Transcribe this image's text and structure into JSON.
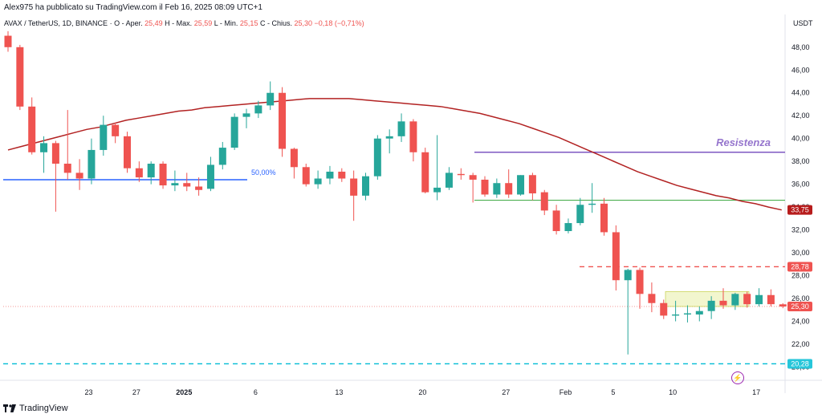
{
  "header": {
    "published": "Alex975 ha pubblicato su TradingView.com il Feb 16, 2025 08:09 UTC+1"
  },
  "symbol": {
    "title": "AVAX / TetherUS, 1D, BINANCE",
    "open_label": "O - Aper.",
    "open": "25,49",
    "high_label": "H - Max.",
    "high": "25,59",
    "low_label": "L - Min.",
    "low": "25,15",
    "close_label": "C - Chius.",
    "close": "25,30",
    "change": "−0,18 (−0,71%)"
  },
  "currency": "USDT",
  "footer": {
    "brand": "TradingView"
  },
  "chart_data": {
    "type": "candlestick",
    "y_range": [
      19.4,
      49.6
    ],
    "y_ticks": [
      "48,00",
      "46,00",
      "44,00",
      "42,00",
      "40,00",
      "38,00",
      "36,00",
      "34,00",
      "32,00",
      "30,00",
      "28,00",
      "26,00",
      "24,00",
      "22,00",
      "20,00"
    ],
    "x_ticks": [
      "23",
      "27",
      "2025",
      "6",
      "13",
      "20",
      "27",
      "Feb",
      "5",
      "10",
      "17"
    ],
    "candles": [
      {
        "o": 49.0,
        "h": 49.4,
        "l": 47.6,
        "c": 48.0
      },
      {
        "o": 48.0,
        "h": 48.2,
        "l": 42.5,
        "c": 42.8
      },
      {
        "o": 42.8,
        "h": 43.6,
        "l": 38.6,
        "c": 38.8
      },
      {
        "o": 38.8,
        "h": 40.2,
        "l": 37.0,
        "c": 39.6
      },
      {
        "o": 39.6,
        "h": 39.8,
        "l": 33.6,
        "c": 37.8
      },
      {
        "o": 37.8,
        "h": 42.5,
        "l": 36.4,
        "c": 37.0
      },
      {
        "o": 37.0,
        "h": 38.2,
        "l": 35.5,
        "c": 36.5
      },
      {
        "o": 36.5,
        "h": 40.0,
        "l": 36.0,
        "c": 39.0
      },
      {
        "o": 39.0,
        "h": 42.0,
        "l": 38.5,
        "c": 41.2
      },
      {
        "o": 41.2,
        "h": 41.4,
        "l": 39.6,
        "c": 40.2
      },
      {
        "o": 40.2,
        "h": 40.6,
        "l": 37.0,
        "c": 37.4
      },
      {
        "o": 37.4,
        "h": 38.0,
        "l": 36.2,
        "c": 36.6
      },
      {
        "o": 36.6,
        "h": 38.0,
        "l": 36.0,
        "c": 37.8
      },
      {
        "o": 37.8,
        "h": 38.0,
        "l": 35.6,
        "c": 35.9
      },
      {
        "o": 35.9,
        "h": 37.2,
        "l": 35.4,
        "c": 36.1
      },
      {
        "o": 36.1,
        "h": 37.0,
        "l": 35.4,
        "c": 35.8
      },
      {
        "o": 35.8,
        "h": 36.6,
        "l": 35.0,
        "c": 35.5
      },
      {
        "o": 35.6,
        "h": 38.4,
        "l": 35.4,
        "c": 37.7
      },
      {
        "o": 37.7,
        "h": 39.7,
        "l": 37.3,
        "c": 39.2
      },
      {
        "o": 39.2,
        "h": 42.2,
        "l": 39.0,
        "c": 41.9
      },
      {
        "o": 41.9,
        "h": 42.6,
        "l": 40.9,
        "c": 42.2
      },
      {
        "o": 42.2,
        "h": 43.3,
        "l": 41.8,
        "c": 42.9
      },
      {
        "o": 42.9,
        "h": 45.0,
        "l": 42.5,
        "c": 44.0
      },
      {
        "o": 44.0,
        "h": 44.5,
        "l": 38.4,
        "c": 39.1
      },
      {
        "o": 39.1,
        "h": 39.2,
        "l": 36.5,
        "c": 37.5
      },
      {
        "o": 37.5,
        "h": 37.8,
        "l": 35.8,
        "c": 36.0
      },
      {
        "o": 36.0,
        "h": 37.2,
        "l": 35.6,
        "c": 36.5
      },
      {
        "o": 36.5,
        "h": 37.6,
        "l": 36.0,
        "c": 37.1
      },
      {
        "o": 37.1,
        "h": 37.4,
        "l": 36.2,
        "c": 36.5
      },
      {
        "o": 36.5,
        "h": 37.2,
        "l": 32.8,
        "c": 35.0
      },
      {
        "o": 35.0,
        "h": 37.0,
        "l": 34.6,
        "c": 36.7
      },
      {
        "o": 36.7,
        "h": 40.3,
        "l": 36.4,
        "c": 40.0
      },
      {
        "o": 40.0,
        "h": 40.8,
        "l": 38.7,
        "c": 40.2
      },
      {
        "o": 40.2,
        "h": 42.2,
        "l": 39.7,
        "c": 41.5
      },
      {
        "o": 41.5,
        "h": 41.7,
        "l": 38.0,
        "c": 38.8
      },
      {
        "o": 38.8,
        "h": 39.2,
        "l": 35.2,
        "c": 35.3
      },
      {
        "o": 35.3,
        "h": 40.3,
        "l": 34.6,
        "c": 35.7
      },
      {
        "o": 35.7,
        "h": 37.5,
        "l": 35.5,
        "c": 37.0
      },
      {
        "o": 36.9,
        "h": 37.4,
        "l": 36.4,
        "c": 36.8
      },
      {
        "o": 36.8,
        "h": 37.0,
        "l": 34.4,
        "c": 36.4
      },
      {
        "o": 36.4,
        "h": 36.7,
        "l": 34.9,
        "c": 35.1
      },
      {
        "o": 35.1,
        "h": 36.5,
        "l": 34.8,
        "c": 36.1
      },
      {
        "o": 36.1,
        "h": 37.3,
        "l": 34.8,
        "c": 35.1
      },
      {
        "o": 35.1,
        "h": 36.8,
        "l": 35.0,
        "c": 36.8
      },
      {
        "o": 36.8,
        "h": 37.0,
        "l": 34.6,
        "c": 35.2
      },
      {
        "o": 35.3,
        "h": 35.5,
        "l": 33.3,
        "c": 33.7
      },
      {
        "o": 33.7,
        "h": 34.2,
        "l": 31.6,
        "c": 31.9
      },
      {
        "o": 31.9,
        "h": 33.0,
        "l": 31.7,
        "c": 32.6
      },
      {
        "o": 32.6,
        "h": 34.8,
        "l": 32.4,
        "c": 34.2
      },
      {
        "o": 34.2,
        "h": 36.1,
        "l": 33.5,
        "c": 34.3
      },
      {
        "o": 34.3,
        "h": 34.8,
        "l": 31.5,
        "c": 31.8
      },
      {
        "o": 31.8,
        "h": 32.4,
        "l": 26.7,
        "c": 27.6
      },
      {
        "o": 27.6,
        "h": 28.6,
        "l": 21.1,
        "c": 28.5
      },
      {
        "o": 28.5,
        "h": 28.7,
        "l": 25.1,
        "c": 26.4
      },
      {
        "o": 26.4,
        "h": 27.4,
        "l": 24.8,
        "c": 25.6
      },
      {
        "o": 25.6,
        "h": 25.9,
        "l": 24.2,
        "c": 24.5
      },
      {
        "o": 24.5,
        "h": 25.8,
        "l": 24.0,
        "c": 24.6
      },
      {
        "o": 24.6,
        "h": 25.4,
        "l": 23.9,
        "c": 24.7
      },
      {
        "o": 24.6,
        "h": 25.3,
        "l": 24.0,
        "c": 24.9
      },
      {
        "o": 24.9,
        "h": 26.2,
        "l": 24.2,
        "c": 25.8
      },
      {
        "o": 25.8,
        "h": 26.9,
        "l": 25.1,
        "c": 25.4
      },
      {
        "o": 25.4,
        "h": 26.5,
        "l": 25.0,
        "c": 26.4
      },
      {
        "o": 26.4,
        "h": 26.6,
        "l": 25.2,
        "c": 25.5
      },
      {
        "o": 25.5,
        "h": 26.9,
        "l": 25.3,
        "c": 26.3
      },
      {
        "o": 26.3,
        "h": 26.8,
        "l": 25.3,
        "c": 25.5
      },
      {
        "o": 25.49,
        "h": 25.59,
        "l": 25.15,
        "c": 25.3
      }
    ],
    "moving_average": [
      39.0,
      39.3,
      39.6,
      39.9,
      40.2,
      40.5,
      40.8,
      41.0,
      41.3,
      41.6,
      41.8,
      42.0,
      42.2,
      42.4,
      42.5,
      42.7,
      42.8,
      42.9,
      43.0,
      43.1,
      43.2,
      43.3,
      43.4,
      43.5,
      43.5,
      43.5,
      43.5,
      43.4,
      43.3,
      43.2,
      43.1,
      43.0,
      42.9,
      42.8,
      42.6,
      42.4,
      42.2,
      41.9,
      41.6,
      41.3,
      40.9,
      40.5,
      40.1,
      39.6,
      39.1,
      38.6,
      38.1,
      37.6,
      37.1,
      36.7,
      36.3,
      35.9,
      35.6,
      35.3,
      35.0,
      34.8,
      34.5,
      34.3,
      34.0,
      33.75
    ],
    "lines": [
      {
        "kind": "support",
        "value": 36.4,
        "color": "#2962ff",
        "label": "50,00%"
      },
      {
        "kind": "resistance",
        "value": 38.8,
        "color": "#7e57c2",
        "label": "Resistenza"
      },
      {
        "kind": "level",
        "value": 34.6,
        "color": "#4caf50",
        "label": ""
      },
      {
        "kind": "dashed",
        "value": 28.78,
        "color": "#ef5350",
        "label": ""
      },
      {
        "kind": "dashed",
        "value": 20.28,
        "color": "#00bcd4",
        "label": ""
      }
    ],
    "price_tags": [
      {
        "text": "33,75",
        "value": 33.75,
        "color": "#b71c1c"
      },
      {
        "text": "28,78",
        "value": 28.78,
        "color": "#ef5350"
      },
      {
        "text": "25,30",
        "value": 25.3,
        "color": "#ef5350"
      },
      {
        "text": "20,28",
        "value": 20.28,
        "color": "#26c6da"
      }
    ],
    "colors": {
      "up": "#26a69a",
      "down": "#ef5350",
      "ma": "#b22222"
    }
  }
}
